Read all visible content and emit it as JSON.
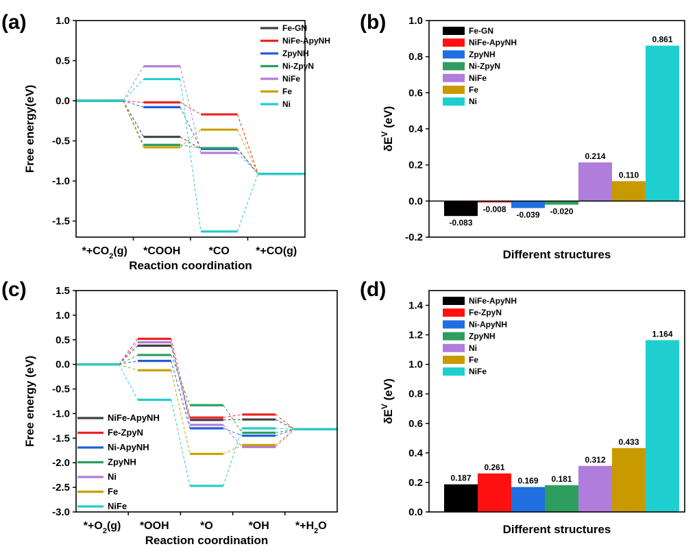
{
  "chart_data": [
    {
      "panel": "(a)",
      "type": "line",
      "title": "",
      "xlabel": "Reaction coordination",
      "ylabel": "Free energy(eV)",
      "ylim": [
        -1.7,
        1.0
      ],
      "yticks": [
        "1.0",
        "0.5",
        "0.0",
        "-0.5",
        "-1.0",
        "-1.5"
      ],
      "ytick_values": [
        1.0,
        0.5,
        0.0,
        -0.5,
        -1.0,
        -1.5
      ],
      "steps": [
        "*+CO2(g)",
        "*COOH",
        "*CO",
        "*+CO(g)"
      ],
      "legend_position": "top-right",
      "series": [
        {
          "name": "Fe-GN",
          "color": "#404040",
          "values": [
            0.0,
            -0.45,
            -0.6,
            -0.91
          ]
        },
        {
          "name": "NiFe-ApyNH",
          "color": "#ee2222",
          "values": [
            0.0,
            -0.02,
            -0.17,
            -0.91
          ]
        },
        {
          "name": "ZpyNH",
          "color": "#1f5fd6",
          "values": [
            0.0,
            -0.08,
            -0.6,
            -0.91
          ]
        },
        {
          "name": "Ni-ZpyN",
          "color": "#2e9e5e",
          "values": [
            0.0,
            -0.55,
            -0.59,
            -0.91
          ]
        },
        {
          "name": "NiFe",
          "color": "#b07ddc",
          "values": [
            0.0,
            0.43,
            -0.65,
            -0.91
          ]
        },
        {
          "name": "Fe",
          "color": "#c9a000",
          "values": [
            0.0,
            -0.58,
            -0.36,
            -0.91
          ]
        },
        {
          "name": "Ni",
          "color": "#22cccc",
          "values": [
            0.0,
            0.27,
            -1.63,
            -0.91
          ]
        }
      ]
    },
    {
      "panel": "(b)",
      "type": "bar",
      "title": "",
      "xlabel": "Different structures",
      "ylabel": "δE",
      "ylabel_sup": "V",
      "ylabel_unit": " (eV)",
      "ylim": [
        -0.2,
        1.0
      ],
      "yticks": [
        "1.0",
        "0.8",
        "0.6",
        "0.4",
        "0.2",
        "0.0",
        "-0.2"
      ],
      "ytick_values": [
        1.0,
        0.8,
        0.6,
        0.4,
        0.2,
        0.0,
        -0.2
      ],
      "legend_position": "top-left",
      "categories": [
        "Fe-GN",
        "NiFe-ApyNH",
        "ZpyNH",
        "Ni-ZpyN",
        "NiFe",
        "Fe",
        "Ni"
      ],
      "colors": [
        "#000000",
        "#ff1111",
        "#1f6fe0",
        "#2e9e5e",
        "#b07ddc",
        "#c99a00",
        "#1fcfcf"
      ],
      "values": [
        -0.083,
        -0.008,
        -0.039,
        -0.02,
        0.214,
        0.11,
        0.861
      ],
      "labels": [
        "-0.083",
        "-0.008",
        "-0.039",
        "-0.020",
        "0.214",
        "0.110",
        "0.861"
      ]
    },
    {
      "panel": "(c)",
      "type": "line",
      "title": "",
      "xlabel": "Reaction coordination",
      "ylabel": "Free energy (eV)",
      "ylim": [
        -3.0,
        1.5
      ],
      "yticks": [
        "1.5",
        "1.0",
        "0.5",
        "0.0",
        "-0.5",
        "-1.0",
        "-1.5",
        "-2.0",
        "-2.5",
        "-3.0"
      ],
      "ytick_values": [
        1.5,
        1.0,
        0.5,
        0.0,
        -0.5,
        -1.0,
        -1.5,
        -2.0,
        -2.5,
        -3.0
      ],
      "steps": [
        "*+O2(g)",
        "*OOH",
        "*O",
        "*OH",
        "*+H2O"
      ],
      "legend_position": "bottom-left",
      "series": [
        {
          "name": "NiFe-ApyNH",
          "color": "#404040",
          "values": [
            0.0,
            0.38,
            -1.13,
            -1.12,
            -1.32
          ]
        },
        {
          "name": "Fe-ZpyN",
          "color": "#ee2222",
          "values": [
            0.0,
            0.52,
            -1.08,
            -1.02,
            -1.32
          ]
        },
        {
          "name": "Ni-ApyNH",
          "color": "#1f5fd6",
          "values": [
            0.0,
            0.07,
            -1.3,
            -1.45,
            -1.32
          ]
        },
        {
          "name": "ZpyNH",
          "color": "#2e9e5e",
          "values": [
            0.0,
            0.19,
            -0.83,
            -1.39,
            -1.32
          ]
        },
        {
          "name": "Ni",
          "color": "#b07ddc",
          "values": [
            0.0,
            0.45,
            -1.23,
            -1.68,
            -1.32
          ]
        },
        {
          "name": "Fe",
          "color": "#c9a000",
          "values": [
            0.0,
            -0.12,
            -1.82,
            -1.64,
            -1.32
          ]
        },
        {
          "name": "NiFe",
          "color": "#22cccc",
          "values": [
            0.0,
            -0.72,
            -2.47,
            -1.3,
            -1.32
          ]
        }
      ]
    },
    {
      "panel": "(d)",
      "type": "bar",
      "title": "",
      "xlabel": "Different structures",
      "ylabel": "δE",
      "ylabel_sup": "V",
      "ylabel_unit": " (eV)",
      "ylim": [
        0.0,
        1.5
      ],
      "yticks": [
        "1.4",
        "1.2",
        "1.0",
        "0.8",
        "0.6",
        "0.4",
        "0.2",
        "0.0"
      ],
      "ytick_values": [
        1.4,
        1.2,
        1.0,
        0.8,
        0.6,
        0.4,
        0.2,
        0.0
      ],
      "legend_position": "top-left",
      "categories": [
        "NiFe-ApyNH",
        "Fe-ZpyN",
        "Ni-ApyNH",
        "ZpyNH",
        "Ni",
        "Fe",
        "NiFe"
      ],
      "colors": [
        "#000000",
        "#ff1111",
        "#1f6fe0",
        "#2e9e5e",
        "#b07ddc",
        "#c99a00",
        "#1fcfcf"
      ],
      "values": [
        0.187,
        0.261,
        0.169,
        0.181,
        0.312,
        0.433,
        1.164
      ],
      "labels": [
        "0.187",
        "0.261",
        "0.169",
        "0.181",
        "0.312",
        "0.433",
        "1.164"
      ]
    }
  ]
}
